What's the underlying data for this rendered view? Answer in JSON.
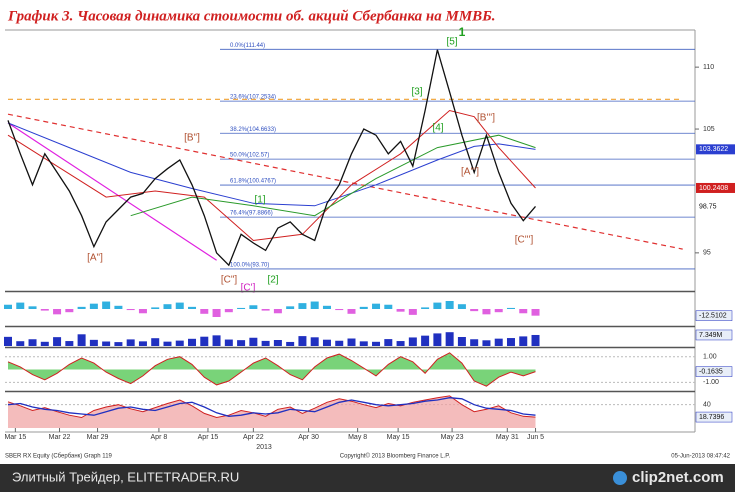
{
  "chart_data": {
    "type": "line",
    "title": "График 3.   Часовая динамика стоимости об. акций Сбербанка на ММВБ.",
    "x": [
      0,
      1,
      2,
      3,
      4,
      5,
      6,
      7,
      8,
      9,
      10,
      11,
      12,
      13,
      14,
      15,
      16,
      17,
      18,
      19,
      20,
      21,
      22,
      23,
      24,
      25,
      26,
      27,
      28,
      29,
      30,
      31,
      32,
      33,
      34,
      35,
      36,
      37,
      38,
      39,
      40,
      41,
      42,
      43
    ],
    "xlim": [
      0,
      56
    ],
    "xticks": [
      {
        "value": 0.6,
        "label": "Mar 15"
      },
      {
        "value": 4.2,
        "label": "Mar 22"
      },
      {
        "value": 7.3,
        "label": "Mar 29"
      },
      {
        "value": 12.3,
        "label": "Apr 8"
      },
      {
        "value": 16.3,
        "label": "Apr 15"
      },
      {
        "value": 20,
        "label": "Apr 22"
      },
      {
        "value": 24.5,
        "label": "Apr 30"
      },
      {
        "value": 28.5,
        "label": "May 8"
      },
      {
        "value": 31.8,
        "label": "May 15"
      },
      {
        "value": 36.2,
        "label": "May 23"
      },
      {
        "value": 40.7,
        "label": "May 31"
      },
      {
        "value": 43,
        "label": "Jun 5"
      }
    ],
    "year_label": "2013",
    "ylim": [
      92,
      113
    ],
    "yticks": [
      95,
      105,
      110
    ],
    "series": [
      {
        "name": "SBER",
        "color": "#111111",
        "values": [
          105.7,
          103,
          100.5,
          103,
          101.5,
          100,
          98,
          95.5,
          97.5,
          98.5,
          99.5,
          99.8,
          101,
          101.8,
          102.5,
          100.5,
          98,
          95,
          94,
          96.5,
          95.8,
          95.2,
          97,
          97.5,
          96.5,
          96,
          99,
          100.5,
          103,
          105,
          104.5,
          103,
          104,
          102,
          106.5,
          111.4,
          108,
          104.5,
          101.5,
          104.5,
          101.5,
          99,
          97.6,
          98.75
        ]
      }
    ],
    "moving_averages": [
      {
        "color": "#2b3fd0",
        "x": [
          0,
          5,
          10,
          15,
          20,
          25,
          30,
          35,
          38,
          40,
          43
        ],
        "values": [
          105.5,
          103.5,
          101.5,
          100.2,
          99,
          98.8,
          100.5,
          102.5,
          103.6,
          103.8,
          103.36
        ],
        "last_label": 103.3622
      },
      {
        "color": "#d02020",
        "x": [
          0,
          4,
          8,
          12,
          16,
          20,
          24,
          28,
          32,
          36,
          38,
          40,
          43
        ],
        "values": [
          104.5,
          102,
          99.5,
          100,
          99.5,
          96,
          96.5,
          100.5,
          103,
          106.5,
          106,
          103.5,
          100.24
        ],
        "last_label": 100.2408
      },
      {
        "color": "#2a9a2a",
        "x": [
          10,
          15,
          20,
          25,
          30,
          35,
          40,
          43
        ],
        "values": [
          98,
          99.5,
          98.8,
          98,
          101,
          103.5,
          104.5,
          103.5
        ]
      }
    ],
    "fib_levels": [
      {
        "label": "0.0%(111.44)",
        "value": 111.44
      },
      {
        "label": "23.6%(107.2534)",
        "value": 107.2534
      },
      {
        "label": "38.2%(104.6633)",
        "value": 104.6633
      },
      {
        "label": "50.0%(102.57)",
        "value": 102.57
      },
      {
        "label": "61.8%(100.4767)",
        "value": 100.4767
      },
      {
        "label": "76.4%(97.8866)",
        "value": 97.8866
      },
      {
        "label": "100.0%(93.70)",
        "value": 93.7
      }
    ],
    "trend_lines": [
      {
        "color": "#e03030",
        "dash": true,
        "x": [
          0,
          55
        ],
        "values": [
          106.2,
          95.3
        ]
      },
      {
        "color": "#e020e0",
        "dash": false,
        "x": [
          0,
          17
        ],
        "values": [
          105.5,
          94.4
        ]
      },
      {
        "color": "#f0a030",
        "dash": true,
        "x": [
          0,
          55
        ],
        "values": [
          107.4,
          107.4
        ]
      }
    ],
    "wave_labels": [
      "[A\"]",
      "[B\"]",
      "[C\"]",
      "[C']",
      "[1]",
      "[2]",
      "[3]",
      "[4]",
      "[5]",
      "1",
      "[A''']",
      "[B''']",
      "[C''']"
    ],
    "panels": [
      {
        "kind": "bars",
        "ylim": [
          -30,
          30
        ],
        "pos_color": "#30b0e0",
        "neg_color": "#e060e0",
        "values": [
          8,
          12,
          5,
          -3,
          -10,
          -6,
          4,
          10,
          14,
          6,
          -2,
          -8,
          3,
          9,
          12,
          4,
          -9,
          -15,
          -6,
          2,
          7,
          -3,
          -8,
          5,
          11,
          14,
          6,
          -2,
          -9,
          4,
          10,
          8,
          -5,
          -11,
          3,
          12,
          15,
          9,
          -4,
          -10,
          -6,
          2,
          -8,
          -12.5102
        ],
        "last_label": -12.5102
      },
      {
        "kind": "bars",
        "ylim": [
          0,
          12
        ],
        "pos_color": "#2030c0",
        "neg_color": "#2030c0",
        "values": [
          6.1,
          3.2,
          4.5,
          2.8,
          5.9,
          3.3,
          7.8,
          4.1,
          3,
          2.6,
          4.4,
          3.1,
          5.2,
          2.9,
          3.6,
          4.8,
          6.2,
          7.1,
          4.3,
          3.9,
          5.5,
          3.4,
          4,
          2.7,
          6.6,
          5.8,
          4.2,
          3.5,
          5,
          3.1,
          2.8,
          4.6,
          3.3,
          5.7,
          6.9,
          8.4,
          9.2,
          6,
          4.5,
          3.8,
          4.9,
          5.3,
          6.4,
          7.349
        ],
        "last_label": {
          "value": 7.349,
          "label": "7.349M"
        }
      },
      {
        "kind": "line",
        "ylim": [
          -1.6,
          1.6
        ],
        "yticks": [
          {
            "value": 1,
            "label": "1.00"
          },
          {
            "value": -1,
            "label": "-1.00"
          }
        ],
        "color": "#d02020",
        "fill": "#40c040",
        "values": [
          0.6,
          0.2,
          -0.4,
          -0.8,
          -0.3,
          0.4,
          0.9,
          0.5,
          -0.2,
          -0.7,
          -1.1,
          -0.5,
          0.3,
          0.8,
          1,
          0.4,
          -0.6,
          -1.2,
          -0.9,
          -0.2,
          0.5,
          0.9,
          0.3,
          -0.4,
          -0.8,
          0.2,
          0.9,
          1.2,
          0.7,
          0.1,
          -0.5,
          0.4,
          1,
          0.6,
          -0.3,
          0.8,
          1.3,
          0.5,
          -0.9,
          -1.3,
          -0.6,
          -0.2,
          -0.5,
          -0.1635
        ],
        "last_label": -0.1635
      },
      {
        "kind": "rsi",
        "ylim": [
          0,
          60
        ],
        "yticks": [
          40
        ],
        "color": "#d02020",
        "fill": "#f0a0a0",
        "color2": "#2030c0",
        "values": [
          45,
          38,
          30,
          35,
          28,
          22,
          18,
          30,
          36,
          40,
          33,
          28,
          35,
          42,
          48,
          38,
          25,
          18,
          22,
          30,
          26,
          20,
          32,
          36,
          25,
          34,
          44,
          50,
          46,
          40,
          35,
          42,
          38,
          44,
          48,
          52,
          55,
          40,
          28,
          32,
          38,
          26,
          20,
          18.7396
        ],
        "values2": [
          40,
          42,
          36,
          32,
          30,
          26,
          24,
          22,
          28,
          34,
          36,
          32,
          30,
          36,
          42,
          44,
          36,
          26,
          20,
          22,
          26,
          24,
          26,
          32,
          30,
          28,
          36,
          44,
          48,
          44,
          40,
          38,
          40,
          42,
          46,
          48,
          52,
          50,
          40,
          34,
          32,
          30,
          24,
          22
        ],
        "last_label": 18.7396
      }
    ],
    "footer_left": "SBER RX Equity (Сбербанк) Graph 119",
    "footer_center": "Copyright© 2013 Bloomberg Finance L.P.",
    "footer_right": "05-Jun-2013 08:47:42",
    "watermark_left": "Элитный Трейдер, ELITETRADER.RU",
    "watermark_right": "clip2net.com"
  }
}
